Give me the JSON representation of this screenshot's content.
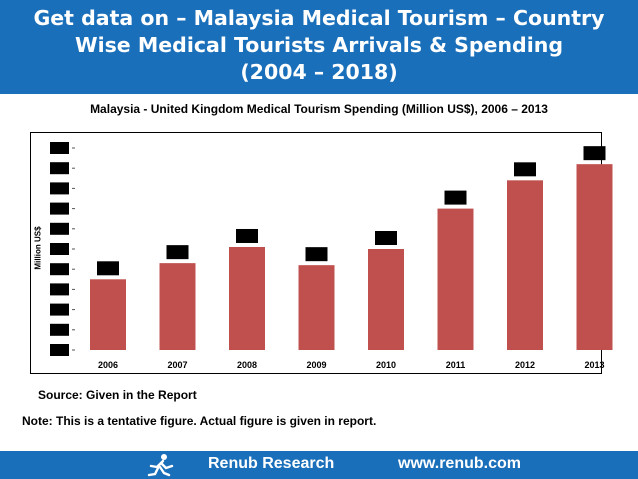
{
  "header": {
    "title_line1": "Get data on – Malaysia Medical Tourism – Country",
    "title_line2": "Wise Medical Tourists Arrivals & Spending",
    "title_line3": "(2004 – 2018)"
  },
  "chart_data": {
    "type": "bar",
    "title": "Malaysia - United Kingdom Medical Tourism Spending (Million US$), 2006 – 2013",
    "xlabel": "",
    "ylabel": "Million US$",
    "categories": [
      "2006",
      "2007",
      "2008",
      "2009",
      "2010",
      "2011",
      "2012",
      "2013"
    ],
    "values": [
      3.5,
      4.3,
      5.1,
      4.2,
      5.0,
      7.0,
      8.4,
      9.2
    ],
    "ylim": [
      0,
      10
    ],
    "y_ticks_count": 11,
    "data_labels_hidden": true,
    "y_tick_labels_hidden": true,
    "grid": false,
    "legend": "none",
    "bar_color": "#c0504d"
  },
  "source_text": "Source: Given in the Report",
  "note_text": "Note: This is a tentative figure. Actual figure is given in report.",
  "footer": {
    "brand": "Renub Research",
    "website": "www.renub.com",
    "logo_icon": "runner-logo-icon"
  },
  "colors": {
    "header_bg": "#1a6fba",
    "footer_bg": "#1a6fba",
    "bar": "#c0504d",
    "redaction": "#000000"
  }
}
